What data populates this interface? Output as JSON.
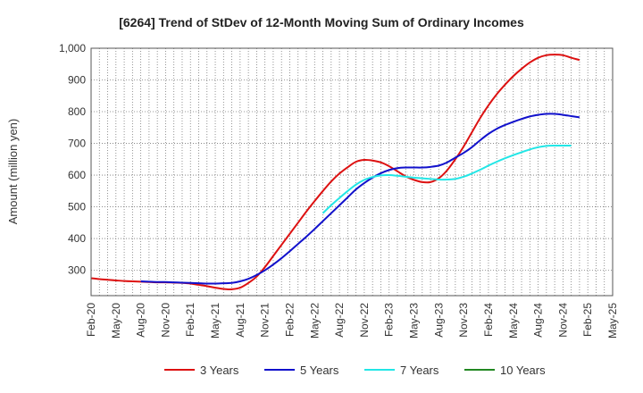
{
  "chart_data": {
    "type": "line",
    "title": "[6264]  Trend of StDev of 12-Month Moving Sum of Ordinary Incomes",
    "xlabel": "",
    "ylabel": "Amount (million yen)",
    "ylim": [
      220,
      1000
    ],
    "yticks": [
      300,
      400,
      500,
      600,
      700,
      800,
      900,
      1000
    ],
    "ytick_labels": [
      "300",
      "400",
      "500",
      "600",
      "700",
      "800",
      "900",
      "1,000"
    ],
    "x_tick_labels": [
      "Feb-20",
      "May-20",
      "Aug-20",
      "Nov-20",
      "Feb-21",
      "May-21",
      "Aug-21",
      "Nov-21",
      "Feb-22",
      "May-22",
      "Aug-22",
      "Nov-22",
      "Feb-23",
      "May-23",
      "Aug-23",
      "Nov-23",
      "Feb-24",
      "May-24",
      "Aug-24",
      "Nov-24",
      "Feb-25",
      "May-25"
    ],
    "grid": true,
    "legend_position": "bottom",
    "series": [
      {
        "name": "3 Years",
        "color": "#dd1111",
        "start_index": 0,
        "values": [
          275,
          272,
          270,
          268,
          266,
          265,
          264,
          263,
          262,
          262,
          261,
          260,
          258,
          254,
          250,
          245,
          241,
          240,
          245,
          260,
          280,
          310,
          345,
          380,
          415,
          450,
          485,
          518,
          550,
          580,
          605,
          625,
          642,
          648,
          646,
          640,
          628,
          612,
          596,
          585,
          578,
          578,
          590,
          615,
          650,
          690,
          735,
          780,
          820,
          855,
          885,
          912,
          935,
          955,
          970,
          978,
          980,
          978,
          970,
          963
        ]
      },
      {
        "name": "5 Years",
        "color": "#1111cc",
        "start_index": 6,
        "values": [
          265,
          264,
          263,
          263,
          262,
          261,
          260,
          259,
          258,
          258,
          259,
          260,
          265,
          273,
          285,
          300,
          318,
          338,
          360,
          383,
          406,
          430,
          455,
          480,
          505,
          530,
          555,
          575,
          592,
          606,
          616,
          622,
          624,
          624,
          624,
          626,
          630,
          640,
          655,
          670,
          688,
          710,
          730,
          746,
          758,
          768,
          777,
          785,
          790,
          793,
          793,
          790,
          786,
          782
        ]
      },
      {
        "name": "7 Years",
        "color": "#22e6e6",
        "start_index": 28,
        "values": [
          480,
          505,
          528,
          550,
          570,
          585,
          594,
          599,
          600,
          598,
          595,
          592,
          590,
          588,
          586,
          586,
          588,
          595,
          605,
          617,
          630,
          642,
          653,
          663,
          672,
          681,
          688,
          692,
          693,
          693,
          693
        ]
      },
      {
        "name": "10 Years",
        "color": "#228822",
        "start_index": 0,
        "values": []
      }
    ]
  }
}
